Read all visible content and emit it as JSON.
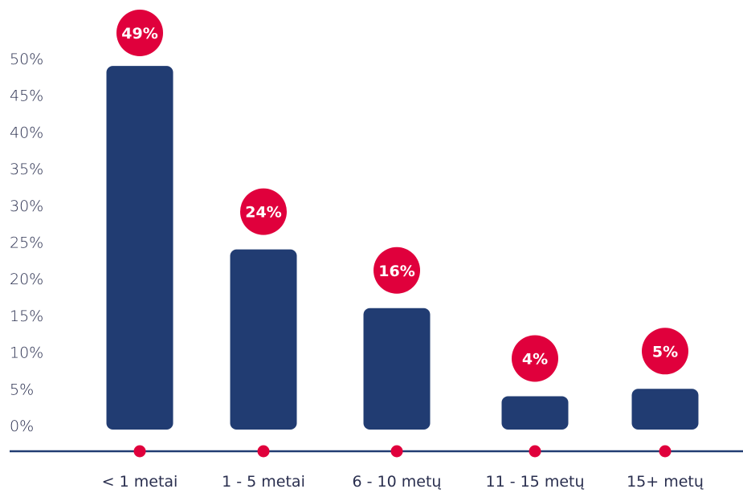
{
  "chart_data": {
    "type": "bar",
    "categories": [
      "< 1 metai",
      "1 - 5 metai",
      "6 - 10 metų",
      "11 - 15 metų",
      "15+ metų"
    ],
    "values": [
      49,
      24,
      16,
      4,
      5
    ],
    "value_labels": [
      "49%",
      "24%",
      "16%",
      "4%",
      "5%"
    ],
    "y_ticks": [
      "0%",
      "5%",
      "10%",
      "15%",
      "20%",
      "25%",
      "30%",
      "35%",
      "40%",
      "45%",
      "50%"
    ],
    "ylim": [
      0,
      50
    ],
    "grid": false,
    "legend": "none",
    "colors": {
      "bar": "#213c72",
      "badge": "#e0003c",
      "axis": "#213c72",
      "axis_dot": "#e0003c",
      "text": "#2a2f4f"
    }
  }
}
